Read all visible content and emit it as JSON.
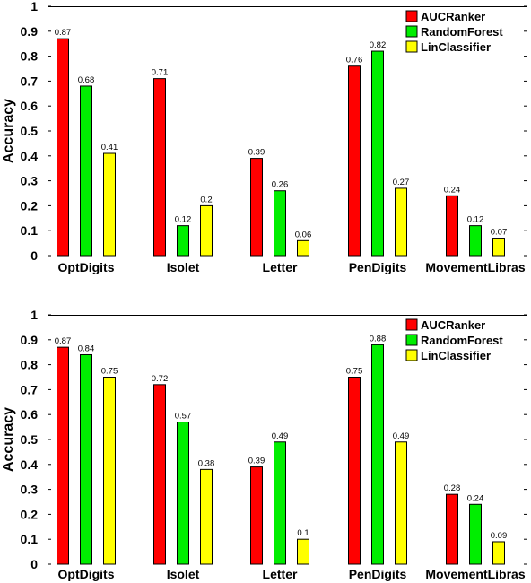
{
  "chart_data": [
    {
      "type": "bar",
      "ylabel": "Accuracy",
      "ylim": [
        0,
        1
      ],
      "yticks": [
        "0",
        "0.1",
        "0.2",
        "0.3",
        "0.4",
        "0.5",
        "0.6",
        "0.7",
        "0.8",
        "0.9",
        "1"
      ],
      "categories": [
        "OptDigits",
        "Isolet",
        "Letter",
        "PenDigits",
        "MovementLibras"
      ],
      "legend_position": "top-right",
      "series": [
        {
          "name": "AUCRanker",
          "color": "#ff0000",
          "values": [
            0.87,
            0.71,
            0.39,
            0.76,
            0.24
          ],
          "labels": [
            "0.87",
            "0.71",
            "0.39",
            "0.76",
            "0.24"
          ]
        },
        {
          "name": "RandomForest",
          "color": "#00ee00",
          "values": [
            0.68,
            0.12,
            0.26,
            0.82,
            0.12
          ],
          "labels": [
            "0.68",
            "0.12",
            "0.26",
            "0.82",
            "0.12"
          ]
        },
        {
          "name": "LinClassifier",
          "color": "#ffff00",
          "values": [
            0.41,
            0.2,
            0.06,
            0.27,
            0.07
          ],
          "labels": [
            "0.41",
            "0.2",
            "0.06",
            "0.27",
            "0.07"
          ]
        }
      ]
    },
    {
      "type": "bar",
      "ylabel": "Accuracy",
      "ylim": [
        0,
        1
      ],
      "yticks": [
        "0",
        "0.1",
        "0.2",
        "0.3",
        "0.4",
        "0.5",
        "0.6",
        "0.7",
        "0.8",
        "0.9",
        "1"
      ],
      "categories": [
        "OptDigits",
        "Isolet",
        "Letter",
        "PenDigits",
        "MovementLibras"
      ],
      "legend_position": "top-right",
      "series": [
        {
          "name": "AUCRanker",
          "color": "#ff0000",
          "values": [
            0.87,
            0.72,
            0.39,
            0.75,
            0.28
          ],
          "labels": [
            "0.87",
            "0.72",
            "0.39",
            "0.75",
            "0.28"
          ]
        },
        {
          "name": "RandomForest",
          "color": "#00ee00",
          "values": [
            0.84,
            0.57,
            0.49,
            0.88,
            0.24
          ],
          "labels": [
            "0.84",
            "0.57",
            "0.49",
            "0.88",
            "0.24"
          ]
        },
        {
          "name": "LinClassifier",
          "color": "#ffff00",
          "values": [
            0.75,
            0.38,
            0.1,
            0.49,
            0.09
          ],
          "labels": [
            "0.75",
            "0.38",
            "0.1",
            "0.49",
            "0.09"
          ]
        }
      ]
    }
  ]
}
